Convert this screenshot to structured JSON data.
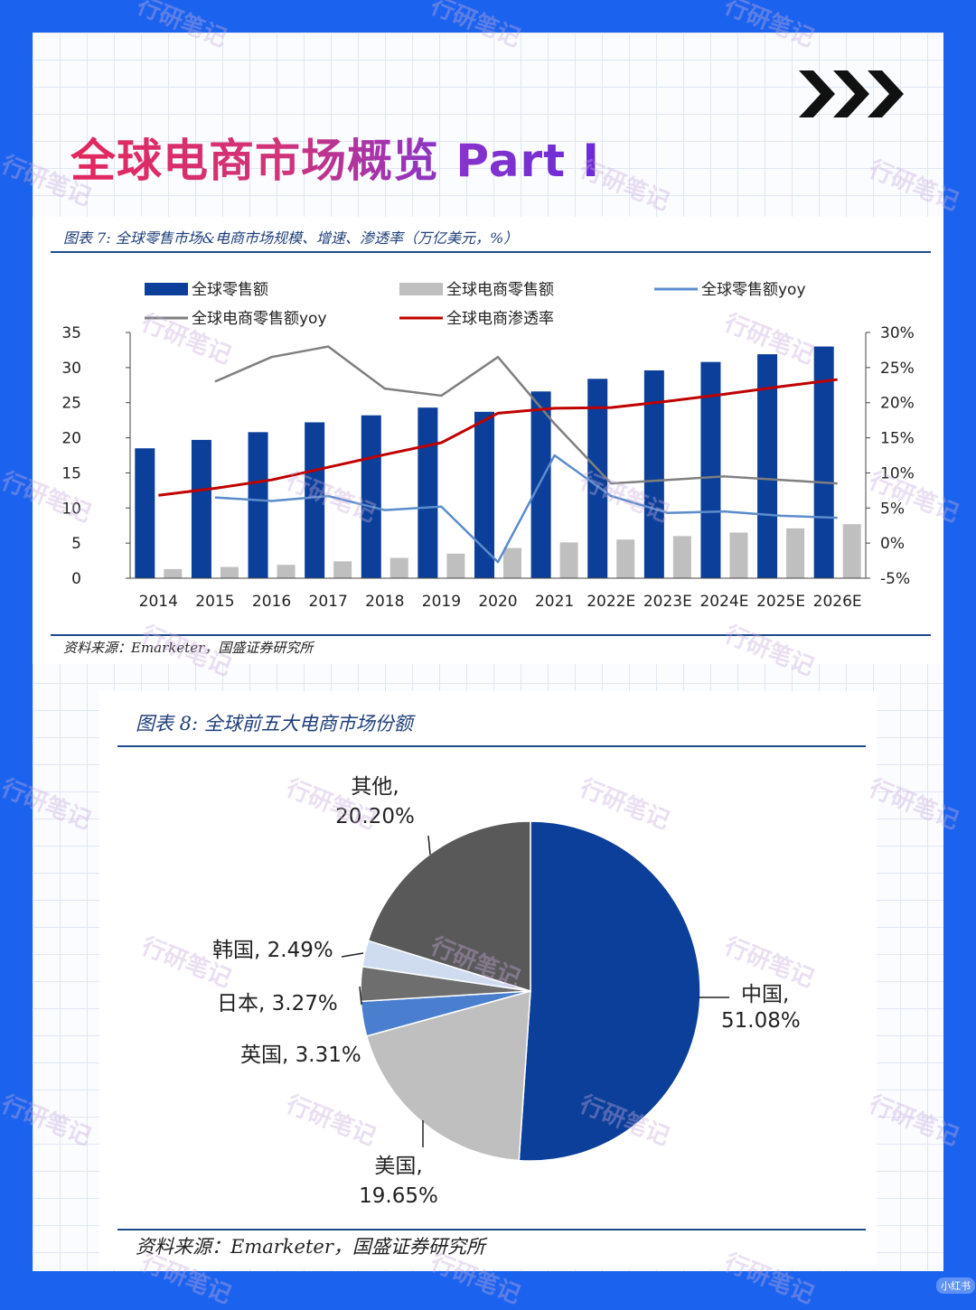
{
  "page": {
    "title": "全球电商市场概览 Part I",
    "watermark": "行研笔记",
    "corner_tag": "小红书",
    "chevron_icon": "triple-chevron-right-icon"
  },
  "figures": {
    "fig7": {
      "caption": "图表 7:  全球零售市场&电商市场规模、增速、渗透率（万亿美元，%）",
      "source": "资料来源：Emarketer，国盛证券研究所"
    },
    "fig8": {
      "caption": "图表 8:  全球前五大电商市场份额",
      "source": "资料来源：Emarketer，国盛证券研究所"
    }
  },
  "colors": {
    "retail_bar": "#0b3f99",
    "ecom_bar": "#bfbfbf",
    "retail_yoy": "#5b8ccc",
    "ecom_yoy": "#7f7f7f",
    "penetration": "#c00000",
    "pie_china": "#0b3f99",
    "pie_us": "#bfbfbf",
    "pie_uk": "#4a7fcf",
    "pie_japan": "#6e6e6e",
    "pie_korea": "#cfdcf0",
    "pie_other": "#595959"
  },
  "chart_data": [
    {
      "type": "bar",
      "categories": [
        "2014",
        "2015",
        "2016",
        "2017",
        "2018",
        "2019",
        "2020",
        "2021",
        "2022E",
        "2023E",
        "2024E",
        "2025E",
        "2026E"
      ],
      "series": [
        {
          "name": "全球零售额",
          "kind": "bar",
          "axis": "left",
          "values": [
            18.5,
            19.7,
            20.8,
            22.2,
            23.2,
            24.3,
            23.7,
            26.6,
            28.4,
            29.6,
            30.8,
            31.9,
            33.0
          ]
        },
        {
          "name": "全球电商零售额",
          "kind": "bar",
          "axis": "left",
          "values": [
            1.3,
            1.6,
            1.9,
            2.4,
            2.9,
            3.5,
            4.3,
            5.1,
            5.5,
            6.0,
            6.5,
            7.1,
            7.7
          ]
        },
        {
          "name": "全球零售额yoy",
          "kind": "line",
          "axis": "right",
          "values": [
            null,
            6.5,
            6.0,
            6.7,
            4.7,
            5.2,
            -2.7,
            12.5,
            6.7,
            4.3,
            4.5,
            3.9,
            3.6
          ]
        },
        {
          "name": "全球电商零售额yoy",
          "kind": "line",
          "axis": "right",
          "values": [
            null,
            23.0,
            26.5,
            28.0,
            22.0,
            21.0,
            26.5,
            17.0,
            8.5,
            9.0,
            9.5,
            9.0,
            8.5
          ]
        },
        {
          "name": "全球电商渗透率",
          "kind": "line",
          "axis": "right",
          "values": [
            6.8,
            7.8,
            9.0,
            10.8,
            12.6,
            14.3,
            18.5,
            19.2,
            19.3,
            20.2,
            21.2,
            22.3,
            23.3
          ]
        }
      ],
      "ylim": [
        0,
        35
      ],
      "yticks": [
        "0",
        "5",
        "10",
        "15",
        "20",
        "25",
        "30",
        "35"
      ],
      "y2lim": [
        -5,
        30
      ],
      "y2ticks": [
        "-5%",
        "0%",
        "5%",
        "10%",
        "15%",
        "20%",
        "25%",
        "30%"
      ],
      "legend": "top"
    },
    {
      "type": "pie",
      "slices": [
        {
          "label": "中国,",
          "value": 51.08,
          "value_label": "51.08%"
        },
        {
          "label": "美国,",
          "value": 19.65,
          "value_label": "19.65%"
        },
        {
          "label": "英国,",
          "value": 3.31,
          "value_label": "3.31%"
        },
        {
          "label": "日本,",
          "value": 3.27,
          "value_label": "3.27%"
        },
        {
          "label": "韩国,",
          "value": 2.49,
          "value_label": "2.49%"
        },
        {
          "label": "其他,",
          "value": 20.2,
          "value_label": "20.20%"
        }
      ]
    }
  ]
}
